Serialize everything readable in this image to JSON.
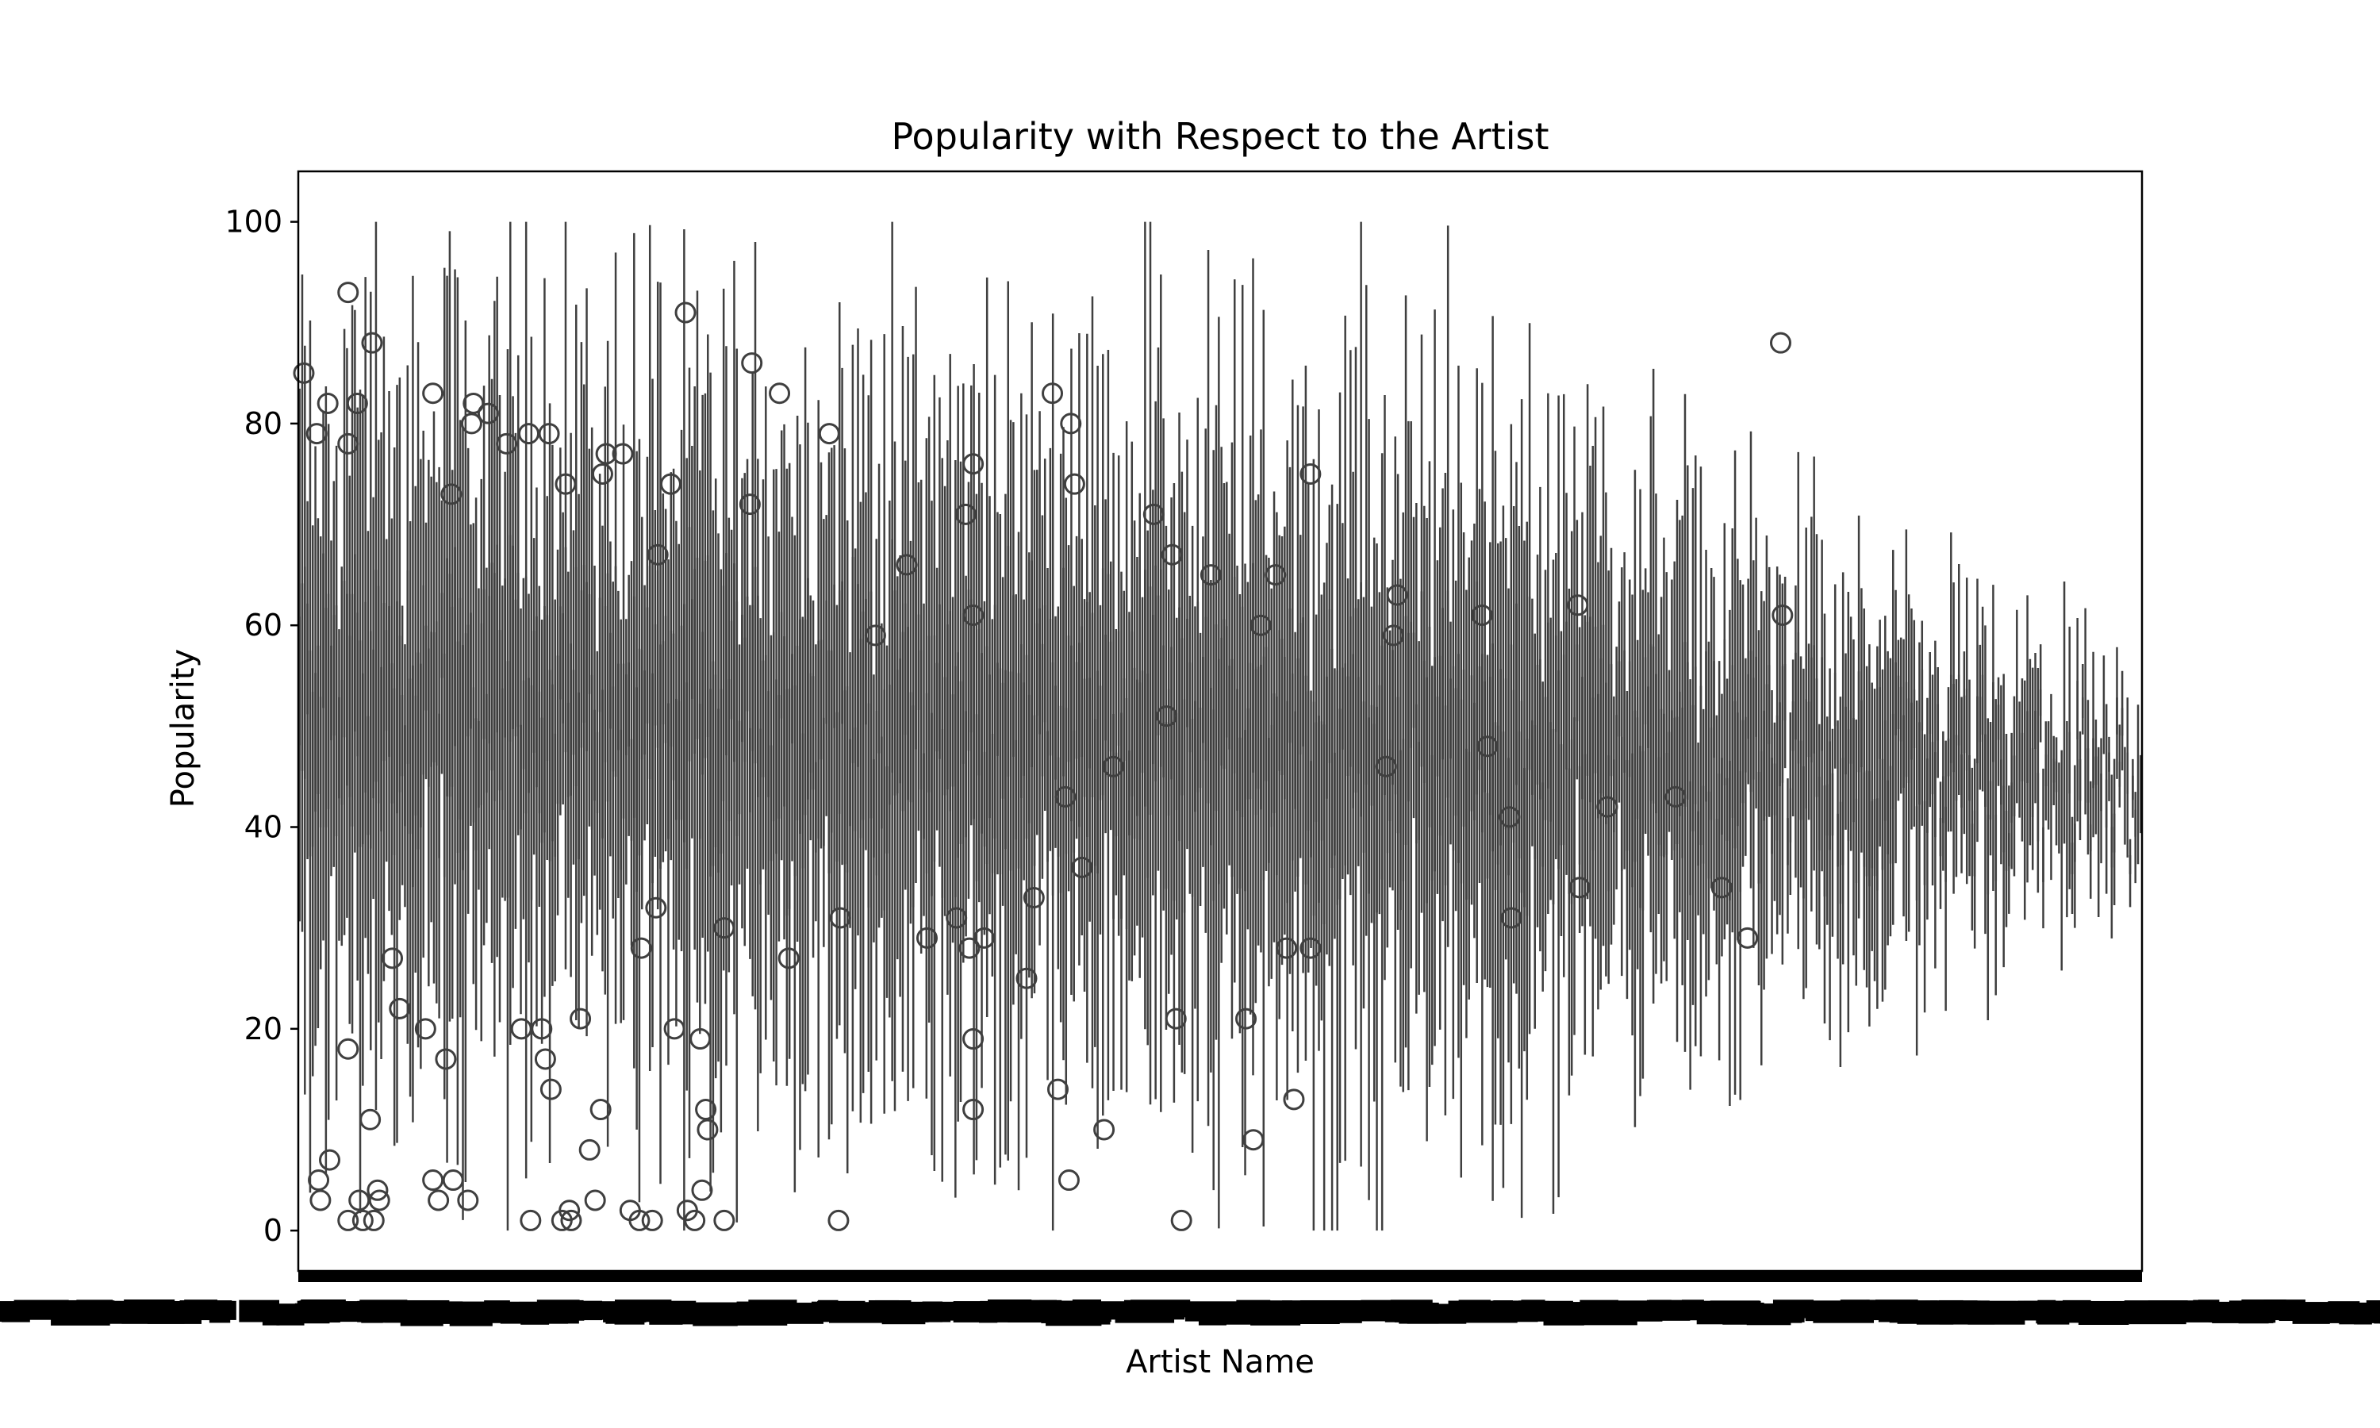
{
  "chart_data": {
    "type": "box",
    "title": "Popularity with Respect to the Artist",
    "xlabel": "Artist Name",
    "ylabel": "Popularity",
    "ylim": [
      -4,
      105
    ],
    "yticks": [
      0,
      20,
      40,
      60,
      80,
      100
    ],
    "grid": false,
    "legend": "none",
    "box_color": "#3f3f3f",
    "x_tick_labels_note": "",
    "categories_count": 700,
    "sampled_outliers": [
      {
        "xf": 0.003,
        "y": 85
      },
      {
        "xf": 0.01,
        "y": 79
      },
      {
        "xf": 0.016,
        "y": 82
      },
      {
        "xf": 0.027,
        "y": 93
      },
      {
        "xf": 0.032,
        "y": 82
      },
      {
        "xf": 0.04,
        "y": 88
      },
      {
        "xf": 0.027,
        "y": 78
      },
      {
        "xf": 0.011,
        "y": 5
      },
      {
        "xf": 0.012,
        "y": 3
      },
      {
        "xf": 0.017,
        "y": 7
      },
      {
        "xf": 0.027,
        "y": 1
      },
      {
        "xf": 0.033,
        "y": 3
      },
      {
        "xf": 0.035,
        "y": 1
      },
      {
        "xf": 0.041,
        "y": 1
      },
      {
        "xf": 0.043,
        "y": 4
      },
      {
        "xf": 0.044,
        "y": 3
      },
      {
        "xf": 0.039,
        "y": 11
      },
      {
        "xf": 0.027,
        "y": 18
      },
      {
        "xf": 0.051,
        "y": 27
      },
      {
        "xf": 0.055,
        "y": 22
      },
      {
        "xf": 0.069,
        "y": 20
      },
      {
        "xf": 0.073,
        "y": 5
      },
      {
        "xf": 0.076,
        "y": 3
      },
      {
        "xf": 0.08,
        "y": 17
      },
      {
        "xf": 0.084,
        "y": 5
      },
      {
        "xf": 0.073,
        "y": 83
      },
      {
        "xf": 0.083,
        "y": 73
      },
      {
        "xf": 0.094,
        "y": 80
      },
      {
        "xf": 0.095,
        "y": 82
      },
      {
        "xf": 0.103,
        "y": 81
      },
      {
        "xf": 0.092,
        "y": 3
      },
      {
        "xf": 0.113,
        "y": 78
      },
      {
        "xf": 0.121,
        "y": 20
      },
      {
        "xf": 0.125,
        "y": 79
      },
      {
        "xf": 0.126,
        "y": 1
      },
      {
        "xf": 0.132,
        "y": 20
      },
      {
        "xf": 0.134,
        "y": 17
      },
      {
        "xf": 0.136,
        "y": 79
      },
      {
        "xf": 0.137,
        "y": 14
      },
      {
        "xf": 0.143,
        "y": 1
      },
      {
        "xf": 0.147,
        "y": 2
      },
      {
        "xf": 0.148,
        "y": 1
      },
      {
        "xf": 0.145,
        "y": 74
      },
      {
        "xf": 0.153,
        "y": 21
      },
      {
        "xf": 0.158,
        "y": 8
      },
      {
        "xf": 0.161,
        "y": 3
      },
      {
        "xf": 0.164,
        "y": 12
      },
      {
        "xf": 0.165,
        "y": 75
      },
      {
        "xf": 0.167,
        "y": 77
      },
      {
        "xf": 0.176,
        "y": 77
      },
      {
        "xf": 0.18,
        "y": 2
      },
      {
        "xf": 0.186,
        "y": 28
      },
      {
        "xf": 0.185,
        "y": 1
      },
      {
        "xf": 0.192,
        "y": 1
      },
      {
        "xf": 0.194,
        "y": 32
      },
      {
        "xf": 0.195,
        "y": 67
      },
      {
        "xf": 0.202,
        "y": 74
      },
      {
        "xf": 0.204,
        "y": 20
      },
      {
        "xf": 0.211,
        "y": 2
      },
      {
        "xf": 0.21,
        "y": 91
      },
      {
        "xf": 0.215,
        "y": 1
      },
      {
        "xf": 0.218,
        "y": 19
      },
      {
        "xf": 0.219,
        "y": 4
      },
      {
        "xf": 0.221,
        "y": 12
      },
      {
        "xf": 0.222,
        "y": 10
      },
      {
        "xf": 0.231,
        "y": 30
      },
      {
        "xf": 0.231,
        "y": 1
      },
      {
        "xf": 0.245,
        "y": 72
      },
      {
        "xf": 0.246,
        "y": 86
      },
      {
        "xf": 0.261,
        "y": 83
      },
      {
        "xf": 0.266,
        "y": 27
      },
      {
        "xf": 0.288,
        "y": 79
      },
      {
        "xf": 0.293,
        "y": 1
      },
      {
        "xf": 0.294,
        "y": 31
      },
      {
        "xf": 0.313,
        "y": 59
      },
      {
        "xf": 0.33,
        "y": 66
      },
      {
        "xf": 0.341,
        "y": 29
      },
      {
        "xf": 0.357,
        "y": 31
      },
      {
        "xf": 0.362,
        "y": 71
      },
      {
        "xf": 0.364,
        "y": 28
      },
      {
        "xf": 0.366,
        "y": 61
      },
      {
        "xf": 0.366,
        "y": 76
      },
      {
        "xf": 0.366,
        "y": 19
      },
      {
        "xf": 0.366,
        "y": 12
      },
      {
        "xf": 0.372,
        "y": 29
      },
      {
        "xf": 0.395,
        "y": 25
      },
      {
        "xf": 0.399,
        "y": 33
      },
      {
        "xf": 0.409,
        "y": 83
      },
      {
        "xf": 0.412,
        "y": 14
      },
      {
        "xf": 0.416,
        "y": 43
      },
      {
        "xf": 0.418,
        "y": 5
      },
      {
        "xf": 0.419,
        "y": 80
      },
      {
        "xf": 0.421,
        "y": 74
      },
      {
        "xf": 0.425,
        "y": 36
      },
      {
        "xf": 0.437,
        "y": 10
      },
      {
        "xf": 0.442,
        "y": 46
      },
      {
        "xf": 0.464,
        "y": 71
      },
      {
        "xf": 0.471,
        "y": 51
      },
      {
        "xf": 0.474,
        "y": 67
      },
      {
        "xf": 0.476,
        "y": 21
      },
      {
        "xf": 0.479,
        "y": 1
      },
      {
        "xf": 0.495,
        "y": 65
      },
      {
        "xf": 0.514,
        "y": 21
      },
      {
        "xf": 0.518,
        "y": 9
      },
      {
        "xf": 0.522,
        "y": 60
      },
      {
        "xf": 0.53,
        "y": 65
      },
      {
        "xf": 0.536,
        "y": 28
      },
      {
        "xf": 0.54,
        "y": 13
      },
      {
        "xf": 0.549,
        "y": 75
      },
      {
        "xf": 0.549,
        "y": 28
      },
      {
        "xf": 0.59,
        "y": 46
      },
      {
        "xf": 0.596,
        "y": 63
      },
      {
        "xf": 0.594,
        "y": 59
      },
      {
        "xf": 0.642,
        "y": 61
      },
      {
        "xf": 0.645,
        "y": 48
      },
      {
        "xf": 0.657,
        "y": 41
      },
      {
        "xf": 0.658,
        "y": 31
      },
      {
        "xf": 0.694,
        "y": 62
      },
      {
        "xf": 0.695,
        "y": 34
      },
      {
        "xf": 0.71,
        "y": 42
      },
      {
        "xf": 0.747,
        "y": 43
      },
      {
        "xf": 0.772,
        "y": 34
      },
      {
        "xf": 0.786,
        "y": 29
      },
      {
        "xf": 0.804,
        "y": 88
      },
      {
        "xf": 0.805,
        "y": 61
      }
    ]
  }
}
